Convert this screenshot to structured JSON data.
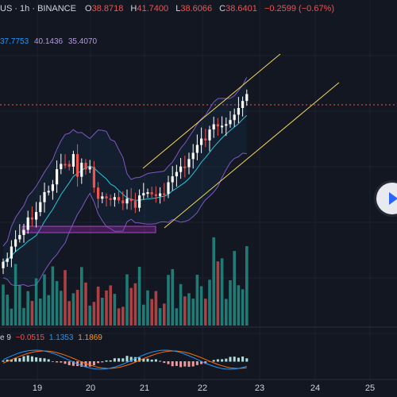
{
  "legend": {
    "title": "US · 1h · BINANCE",
    "o_label": "O",
    "o_value": "38.8718",
    "h_label": "H",
    "h_value": "41.7400",
    "l_label": "L",
    "l_value": "38.6066",
    "c_label": "C",
    "c_value": "38.6401",
    "change": "−0.2599 (−0.67%)"
  },
  "bollinger": {
    "basis": "37.7753",
    "upper": "40.1436",
    "lower": "35.4070"
  },
  "macd": {
    "label": "e 9",
    "hist": "−0.0515",
    "macd": "1.1353",
    "signal": "1.1869"
  },
  "x_axis": [
    "19",
    "20",
    "21",
    "22",
    "23",
    "24",
    "25"
  ],
  "colors": {
    "background": "#131722",
    "up": "#26a69a",
    "down": "#ef5350",
    "band": "#7e57c2",
    "basis": "#2196f3",
    "channel": "#f3d55b",
    "macd_line": "#2196f3",
    "signal_line": "#ff6d00"
  },
  "play_icon": "play-icon"
}
